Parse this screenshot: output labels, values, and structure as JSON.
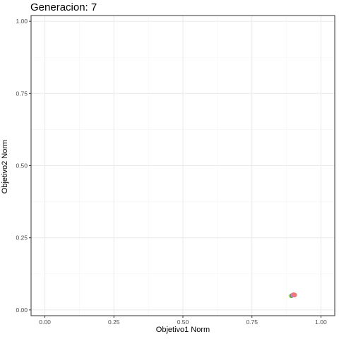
{
  "chart_data": {
    "type": "scatter",
    "title": "Generacion: 7",
    "xlabel": "Objetivo1 Norm",
    "ylabel": "Objetivo2 Norm",
    "xlim": [
      -0.05,
      1.05
    ],
    "ylim": [
      -0.02,
      1.02
    ],
    "x_ticks": [
      "0.00",
      "0.25",
      "0.50",
      "0.75",
      "1.00"
    ],
    "y_ticks": [
      "0.00",
      "0.25",
      "0.50",
      "0.75",
      "1.00"
    ],
    "x_tick_values": [
      0,
      0.25,
      0.5,
      0.75,
      1.0
    ],
    "y_tick_values": [
      0,
      0.25,
      0.5,
      0.75,
      1.0
    ],
    "grid": true,
    "legend": "none",
    "points": [
      {
        "x": 0.893,
        "y": 0.049,
        "color": "#7CAE00"
      },
      {
        "x": 0.897,
        "y": 0.051,
        "color": "#00BFC4"
      },
      {
        "x": 0.899,
        "y": 0.052,
        "color": "#C77CFF"
      },
      {
        "x": 0.901,
        "y": 0.053,
        "color": "#F8766D"
      },
      {
        "x": 0.903,
        "y": 0.051,
        "color": "#E76BF3"
      },
      {
        "x": 0.905,
        "y": 0.052,
        "color": "#F8766D"
      }
    ],
    "colors": {
      "panel_border": "#333333",
      "grid_major": "#EBEBEB",
      "grid_minor": "#F5F5F5",
      "tick_text": "#4D4D4D"
    }
  }
}
